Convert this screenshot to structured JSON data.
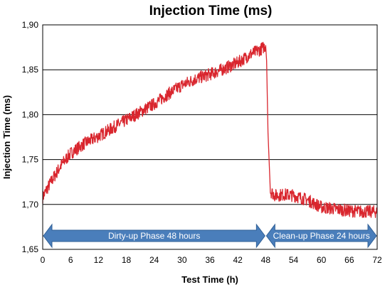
{
  "chart_data": {
    "type": "line",
    "title": "Injection Time (ms)",
    "xlabel": "Test Time (h)",
    "ylabel": "Injection Time (ms)",
    "xlim": [
      0,
      72
    ],
    "ylim": [
      1.65,
      1.9
    ],
    "x_ticks": [
      "0",
      "6",
      "12",
      "18",
      "24",
      "30",
      "36",
      "42",
      "48",
      "54",
      "60",
      "66",
      "72"
    ],
    "y_ticks": [
      "1,65",
      "1,70",
      "1,75",
      "1,80",
      "1,85",
      "1,90"
    ],
    "grid": "horizontal",
    "series": [
      {
        "color": "#d9262e",
        "x": [
          0,
          1,
          2,
          4,
          6,
          9,
          12,
          15,
          18,
          21,
          24,
          27,
          30,
          33,
          36,
          39,
          42,
          45,
          47,
          48,
          48.2,
          48.5,
          49,
          50,
          52,
          54,
          57,
          60,
          63,
          66,
          69,
          72
        ],
        "y": [
          1.708,
          1.718,
          1.727,
          1.744,
          1.757,
          1.768,
          1.776,
          1.785,
          1.794,
          1.803,
          1.812,
          1.823,
          1.833,
          1.84,
          1.845,
          1.851,
          1.858,
          1.868,
          1.873,
          1.877,
          1.86,
          1.78,
          1.715,
          1.71,
          1.711,
          1.71,
          1.705,
          1.697,
          1.695,
          1.693,
          1.692,
          1.692
        ]
      }
    ],
    "phases": [
      {
        "label": "Dirty-up Phase 48 hours",
        "start": 0,
        "end": 48,
        "color": "#4a7ebb"
      },
      {
        "label": "Clean-up Phase 24 hours",
        "start": 48,
        "end": 72,
        "color": "#4a7ebb"
      }
    ]
  }
}
